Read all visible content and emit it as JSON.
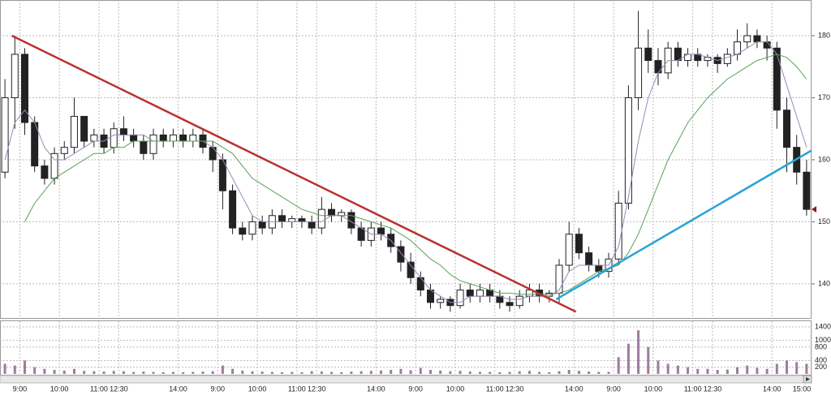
{
  "chart_data": {
    "type": "candlestick",
    "xlim": [
      0,
      82
    ],
    "xticks": [
      {
        "value": 2,
        "label": "9:00"
      },
      {
        "value": 6,
        "label": "10:00"
      },
      {
        "value": 10,
        "label": "11:00"
      },
      {
        "value": 12,
        "label": "12:30"
      },
      {
        "value": 18,
        "label": "14:00"
      },
      {
        "value": 22,
        "label": "9:00"
      },
      {
        "value": 26,
        "label": "10:00"
      },
      {
        "value": 30,
        "label": "11:00"
      },
      {
        "value": 32,
        "label": "12:30"
      },
      {
        "value": 38,
        "label": "14:00"
      },
      {
        "value": 42,
        "label": "9:00"
      },
      {
        "value": 46,
        "label": "10:00"
      },
      {
        "value": 50,
        "label": "11:00"
      },
      {
        "value": 52,
        "label": "12:30"
      },
      {
        "value": 58,
        "label": "14:00"
      },
      {
        "value": 62,
        "label": "9:00"
      },
      {
        "value": 66,
        "label": "10:00"
      },
      {
        "value": 70,
        "label": "11:00"
      },
      {
        "value": 72,
        "label": "12:30"
      },
      {
        "value": 78,
        "label": "14:00"
      },
      {
        "value": 82,
        "label": "15:00"
      }
    ],
    "ylim": [
      134.5,
      185.75
    ],
    "yticks": [
      140,
      150,
      160,
      170,
      180
    ],
    "grid": true,
    "up_color": "#ffffff",
    "down_color": "#222222",
    "open": [
      158,
      170,
      177,
      166,
      159,
      157,
      161,
      162,
      167,
      163,
      164,
      162,
      165,
      164,
      163,
      161,
      164,
      163,
      164,
      163,
      164,
      162,
      160,
      155,
      149,
      148,
      150,
      149,
      151,
      150,
      150.5,
      150,
      149,
      152,
      151,
      151.5,
      149,
      147,
      149,
      148,
      146,
      143.5,
      141,
      139,
      137,
      137.5,
      136.5,
      139,
      138,
      139,
      138,
      137,
      136.5,
      138,
      139,
      138,
      138.5,
      143,
      148,
      145,
      143,
      142,
      144,
      153,
      170,
      178,
      176,
      174,
      178,
      176,
      177,
      176,
      176.5,
      175.5,
      177,
      179,
      180,
      179,
      178,
      168,
      162,
      158
    ],
    "high": [
      173,
      180,
      178,
      167,
      160,
      162,
      163,
      170,
      167,
      165,
      165,
      166,
      167,
      165,
      164,
      165,
      165,
      165,
      165,
      165,
      165,
      163,
      161,
      156,
      150,
      151,
      151,
      152,
      152,
      151,
      151,
      151,
      154,
      153,
      152,
      152,
      150,
      150,
      150,
      149,
      147,
      145,
      142,
      140,
      138,
      138,
      140,
      140,
      140,
      140,
      139,
      138,
      139,
      140,
      140,
      139,
      144,
      150,
      149,
      146,
      144,
      145,
      155,
      172,
      184,
      181,
      178,
      179,
      179,
      178,
      178,
      177,
      177,
      178,
      181,
      182,
      181,
      180,
      179,
      170,
      164,
      160
    ],
    "low": [
      157,
      165,
      164,
      158,
      156,
      156,
      160,
      161,
      162,
      162,
      161,
      161,
      163,
      162,
      160,
      160,
      162,
      162,
      162,
      162,
      161,
      158,
      152,
      148,
      147,
      147,
      148,
      148,
      149,
      149,
      149,
      148,
      148,
      150,
      150,
      148,
      146,
      146,
      147,
      145,
      142,
      140,
      138,
      136,
      136,
      135.5,
      136,
      137,
      137,
      137,
      136,
      135.5,
      136,
      137,
      137,
      137,
      137,
      142,
      144,
      142,
      141,
      141,
      143,
      152,
      168,
      174,
      172,
      173,
      175,
      175,
      175,
      175,
      174,
      175,
      176,
      178,
      178,
      176,
      165,
      158,
      156,
      151
    ],
    "close": [
      170,
      177,
      166,
      159,
      157,
      161,
      162,
      167,
      163,
      164,
      162,
      165,
      164,
      163,
      161,
      164,
      163,
      164,
      163,
      164,
      162,
      160,
      155,
      149,
      148,
      150,
      149,
      151,
      150,
      150.5,
      150,
      149,
      152,
      151,
      151.5,
      149,
      147,
      149,
      148,
      146,
      143.5,
      141,
      139,
      137,
      137.5,
      136.5,
      139,
      138,
      139,
      138,
      137,
      136.5,
      138,
      139,
      138,
      138.5,
      143,
      148,
      145,
      143,
      142,
      144,
      153,
      170,
      178,
      176,
      174,
      178,
      176,
      177,
      176,
      176.5,
      175.5,
      177,
      179,
      180,
      179,
      178,
      168,
      162,
      158,
      152
    ],
    "lines": [
      {
        "color": "#9a8ab4",
        "values": [
          160,
          166,
          168,
          166,
          162,
          160,
          160,
          161,
          162,
          163,
          163,
          164,
          164,
          164,
          164,
          163,
          163,
          163,
          163,
          163,
          163,
          162,
          160,
          157,
          154,
          151,
          150,
          150,
          150,
          150,
          150,
          150,
          150,
          151,
          151,
          150,
          149,
          148,
          148,
          147,
          145,
          143,
          141,
          139,
          138,
          137,
          137,
          138,
          138,
          138,
          138,
          137.5,
          137.5,
          138,
          138,
          138,
          139,
          142,
          143,
          143,
          143,
          143,
          146,
          154,
          163,
          170,
          174,
          176,
          176,
          177,
          177,
          176.5,
          176,
          176.5,
          177,
          178,
          179,
          179,
          177,
          172,
          167,
          162
        ]
      },
      {
        "color": "#5aa05a",
        "values": [
          null,
          null,
          150,
          153,
          155,
          157,
          158,
          159,
          160,
          161,
          161,
          162,
          162,
          163,
          163,
          163,
          163,
          163,
          163,
          163,
          163,
          163,
          162,
          161,
          159,
          157,
          156,
          155,
          154,
          153,
          152,
          151.5,
          151,
          151,
          151,
          151,
          150.5,
          150,
          149.5,
          149,
          148,
          147,
          145.5,
          144,
          143,
          141.5,
          140.5,
          140,
          139.5,
          139,
          138.5,
          138.5,
          138.3,
          138.3,
          138.3,
          138.3,
          138.5,
          139,
          140,
          141,
          142,
          142.5,
          143,
          145,
          148,
          152,
          156,
          160,
          163,
          166,
          168,
          170,
          171.5,
          173,
          174,
          175,
          176,
          176.5,
          177,
          176.5,
          175,
          173
        ]
      }
    ],
    "trendlines": [
      {
        "color": "#b83232",
        "x": [
          1.2,
          58.2
        ],
        "y": [
          180,
          135.5
        ]
      },
      {
        "color": "#2aa2d8",
        "x": [
          56.2,
          82
        ],
        "y": [
          137.5,
          161.5
        ]
      }
    ],
    "volume": [
      300,
      250,
      400,
      200,
      150,
      120,
      100,
      150,
      90,
      80,
      70,
      90,
      80,
      60,
      70,
      60,
      50,
      60,
      50,
      60,
      70,
      80,
      250,
      150,
      100,
      80,
      70,
      60,
      50,
      60,
      50,
      80,
      70,
      60,
      50,
      70,
      80,
      90,
      100,
      120,
      150,
      110,
      180,
      120,
      100,
      80,
      90,
      70,
      60,
      60,
      50,
      60,
      80,
      90,
      60,
      50,
      80,
      120,
      90,
      70,
      60,
      60,
      500,
      900,
      1300,
      800,
      400,
      300,
      250,
      200,
      150,
      150,
      120,
      130,
      200,
      250,
      180,
      150,
      300,
      400,
      350,
      300
    ],
    "volume_color": "#a07aa0",
    "volume_lim": [
      0,
      1570
    ],
    "volume_ticks": [
      200,
      400,
      800,
      1000,
      1400
    ]
  }
}
